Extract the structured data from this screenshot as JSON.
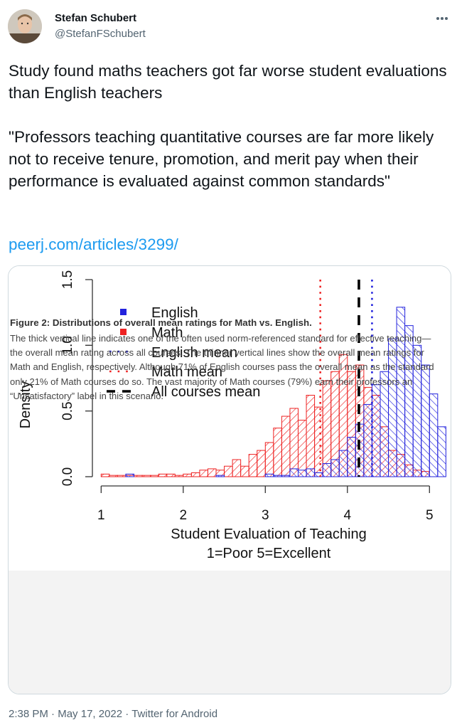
{
  "author": {
    "display_name": "Stefan Schubert",
    "handle": "@StefanFSchubert"
  },
  "tweet": {
    "text": "Study found maths teachers got far worse student evaluations than English teachers\n\n\"Professors teaching quantitative courses are far more likely not to receive tenure, promotion, and merit pay when their performance is evaluated against common standards\"",
    "link": "peerj.com/articles/3299/"
  },
  "figure": {
    "caption_title": "Figure 2: Distributions of overall mean ratings for Math vs. English.",
    "caption_body": "The thick vertical line indicates one of the often used norm-referenced standard for effective teaching—the overall mean rating across all courses. The thinner vertical lines show the overall mean ratings for Math and English, respectively. Although 71% of English courses pass the overall mean as the standard only 21% of Math courses do so. The vast majority of Math courses (79%) earn their professors an “Unsatisfactory” label in this scenario."
  },
  "meta": {
    "time": "2:38 PM",
    "sep1": " · ",
    "date": "May 17, 2022",
    "sep2": " · ",
    "source": "Twitter for Android"
  },
  "chart_data": {
    "type": "histogram",
    "xlabel": "Student Evaluation of Teaching",
    "xlabel2": "1=Poor 5=Excellent",
    "ylabel": "Density",
    "xlim": [
      0.98,
      5.24
    ],
    "ylim": [
      0,
      1.5
    ],
    "x_ticks": [
      "1",
      "2",
      "3",
      "4",
      "5"
    ],
    "y_ticks": [
      "0.0",
      "0.5",
      "1.0",
      "1.5"
    ],
    "bin_width": 0.1,
    "colors": {
      "english": "#2222dd",
      "math": "#ee2222"
    },
    "legend": [
      "English",
      "Math",
      "English mean",
      "Math mean",
      "All courses mean"
    ],
    "series": [
      {
        "name": "Math",
        "bin_starts": [
          1.0,
          1.1,
          1.2,
          1.3,
          1.4,
          1.5,
          1.6,
          1.7,
          1.8,
          1.9,
          2.0,
          2.1,
          2.2,
          2.3,
          2.4,
          2.5,
          2.6,
          2.7,
          2.8,
          2.9,
          3.0,
          3.1,
          3.2,
          3.3,
          3.4,
          3.5,
          3.6,
          3.7,
          3.8,
          3.9,
          4.0,
          4.1,
          4.2,
          4.3,
          4.4,
          4.5,
          4.6,
          4.7,
          4.8,
          4.9
        ],
        "values": [
          0.02,
          0.01,
          0.01,
          0.01,
          0.01,
          0.01,
          0.01,
          0.02,
          0.02,
          0.01,
          0.02,
          0.03,
          0.05,
          0.06,
          0.05,
          0.08,
          0.13,
          0.08,
          0.17,
          0.2,
          0.26,
          0.37,
          0.46,
          0.52,
          0.43,
          0.62,
          0.53,
          0.73,
          0.8,
          0.93,
          0.8,
          0.85,
          0.68,
          0.62,
          0.38,
          0.2,
          0.17,
          0.09,
          0.05,
          0.04
        ]
      },
      {
        "name": "English",
        "bin_starts": [
          1.0,
          1.1,
          1.2,
          1.3,
          1.4,
          1.5,
          1.6,
          1.7,
          1.8,
          1.9,
          2.0,
          2.1,
          2.2,
          2.3,
          2.4,
          2.5,
          2.6,
          2.7,
          2.8,
          2.9,
          3.0,
          3.1,
          3.2,
          3.3,
          3.4,
          3.5,
          3.6,
          3.7,
          3.8,
          3.9,
          4.0,
          4.1,
          4.2,
          4.3,
          4.4,
          4.5,
          4.6,
          4.7,
          4.8,
          4.9,
          5.0,
          5.1
        ],
        "values": [
          0.0,
          0.0,
          0.0,
          0.02,
          0.0,
          0.0,
          0.0,
          0.0,
          0.0,
          0.0,
          0.0,
          0.0,
          0.0,
          0.0,
          0.01,
          0.0,
          0.0,
          0.0,
          0.0,
          0.0,
          0.02,
          0.01,
          0.01,
          0.06,
          0.05,
          0.06,
          0.03,
          0.1,
          0.13,
          0.2,
          0.3,
          0.4,
          0.55,
          0.7,
          0.8,
          1.05,
          1.29,
          1.15,
          1.0,
          0.85,
          0.63,
          0.38
        ]
      }
    ],
    "means": {
      "math": 3.67,
      "english": 4.3,
      "all": 4.14
    }
  }
}
